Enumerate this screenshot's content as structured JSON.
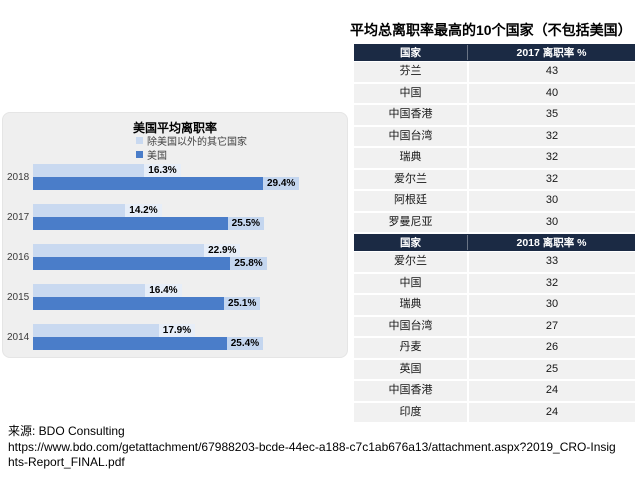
{
  "right_panel": {
    "title": "平均总离职率最高的10个国家（不包括美国）"
  },
  "tables": [
    {
      "headers": [
        "国家",
        "2017 离职率 %"
      ],
      "rows": [
        [
          "芬兰",
          "43"
        ],
        [
          "中国",
          "40"
        ],
        [
          "中国香港",
          "35"
        ],
        [
          "中国台湾",
          "32"
        ],
        [
          "瑞典",
          "32"
        ],
        [
          "爱尔兰",
          "32"
        ],
        [
          "阿根廷",
          "30"
        ],
        [
          "罗曼尼亚",
          "30"
        ]
      ]
    },
    {
      "headers": [
        "国家",
        "2018 离职率 %"
      ],
      "rows": [
        [
          "爱尔兰",
          "33"
        ],
        [
          "中国",
          "32"
        ],
        [
          "瑞典",
          "30"
        ],
        [
          "中国台湾",
          "27"
        ],
        [
          "丹麦",
          "26"
        ],
        [
          "英国",
          "25"
        ],
        [
          "中国香港",
          "24"
        ],
        [
          "印度",
          "24"
        ]
      ]
    }
  ],
  "chart_data": {
    "type": "bar",
    "orientation": "horizontal",
    "title": "美国平均离职率",
    "categories": [
      "2018",
      "2017",
      "2016",
      "2015",
      "2014"
    ],
    "series": [
      {
        "name": "除美国以外的其它国家",
        "color": "#C9D9F0",
        "values": [
          16.3,
          14.2,
          22.9,
          16.4,
          17.9
        ],
        "labels": [
          "16.3%",
          "14.2%",
          "22.9%",
          "16.4%",
          "17.9%"
        ]
      },
      {
        "name": "美国",
        "color": "#4A7DC9",
        "values": [
          29.4,
          25.5,
          25.8,
          25.1,
          25.4
        ],
        "labels": [
          "29.4%",
          "25.5%",
          "25.8%",
          "25.1%",
          "25.4%"
        ]
      }
    ],
    "xlabel": "",
    "ylabel": "",
    "xlim": [
      0,
      34
    ],
    "value_suffix": "%",
    "grid": false,
    "legend_position": "top-left-of-plot",
    "panel_bg": "#EFEFEF"
  },
  "source": {
    "label": "来源: BDO Consulting",
    "url": "https://www.bdo.com/getattachment/67988203-bcde-44ec-a188-c7c1ab676a13/attachment.aspx?2019_CRO-Insights-Report_FINAL.pdf"
  },
  "colors": {
    "table_header_bg": "#1B2A44",
    "table_header_text": "#FFFFFF",
    "table_row_bg": "#F1F1F1",
    "bar_non_us": "#C9D9F0",
    "bar_us": "#4A7DC9",
    "label_chip_on_dark": "#C4D6EF",
    "chart_panel_bg": "#EFEFEF"
  }
}
